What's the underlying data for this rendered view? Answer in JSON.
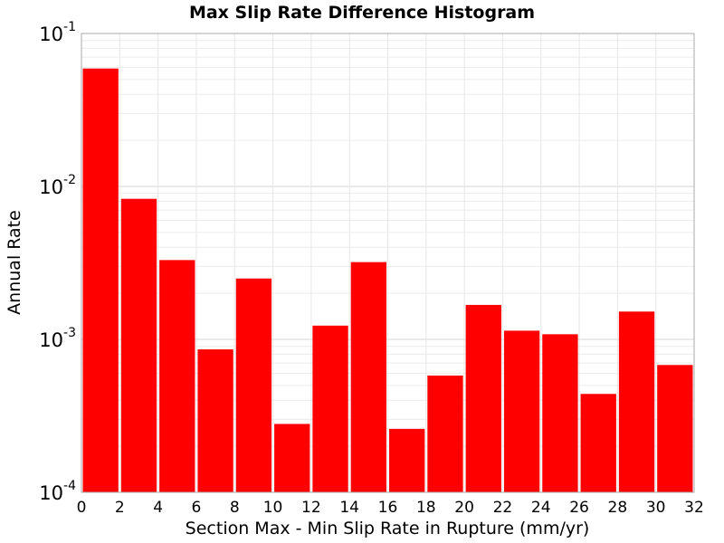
{
  "chart_data": {
    "type": "bar",
    "title": "Max Slip Rate Difference Histogram",
    "xlabel": "Section Max - Min Slip Rate in Rupture (mm/yr)",
    "ylabel": "Annual Rate",
    "xlim": [
      0,
      32
    ],
    "ylim": [
      0.0001,
      0.1
    ],
    "yscale": "log",
    "grid": true,
    "bar_color": "#ff0000",
    "bin_width": 2,
    "x": [
      1,
      3,
      5,
      7,
      9,
      11,
      13,
      15,
      17,
      19,
      21,
      23,
      25,
      27,
      29,
      31
    ],
    "values": [
      0.059,
      0.0083,
      0.0033,
      0.00086,
      0.0025,
      0.00028,
      0.00123,
      0.0032,
      0.00026,
      0.00058,
      0.00168,
      0.00114,
      0.00108,
      0.00044,
      0.00152,
      0.00068
    ],
    "xticks": [
      "0",
      "2",
      "4",
      "6",
      "8",
      "10",
      "12",
      "14",
      "16",
      "18",
      "20",
      "22",
      "24",
      "26",
      "28",
      "30",
      "32"
    ],
    "yticks": [
      {
        "base": "10",
        "exp": "-1",
        "value": 0.1
      },
      {
        "base": "10",
        "exp": "-2",
        "value": 0.01
      },
      {
        "base": "10",
        "exp": "-3",
        "value": 0.001
      },
      {
        "base": "10",
        "exp": "-4",
        "value": 0.0001
      }
    ]
  }
}
